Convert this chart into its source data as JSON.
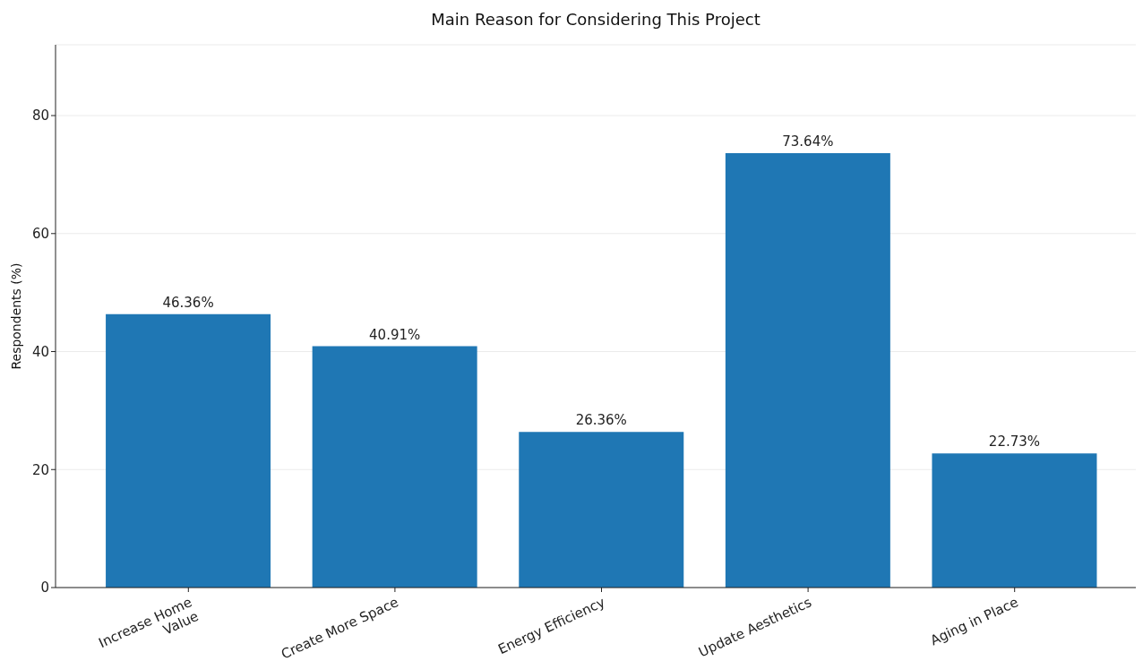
{
  "chart_data": {
    "type": "bar",
    "title": "Main Reason for Considering This Project",
    "ylabel": "Respondents (%)",
    "categories": [
      "Increase Home Value",
      "Create More Space",
      "Energy Efficiency",
      "Update Aesthetics",
      "Aging in Place"
    ],
    "values": [
      46.36,
      40.91,
      26.36,
      73.64,
      22.73
    ],
    "value_labels": [
      "46.36%",
      "40.91%",
      "26.36%",
      "73.64%",
      "22.73%"
    ],
    "color": "#1f77b4",
    "ylim": [
      0,
      92
    ],
    "yticks": [
      0,
      20,
      40,
      60,
      80
    ],
    "grid": "y"
  }
}
